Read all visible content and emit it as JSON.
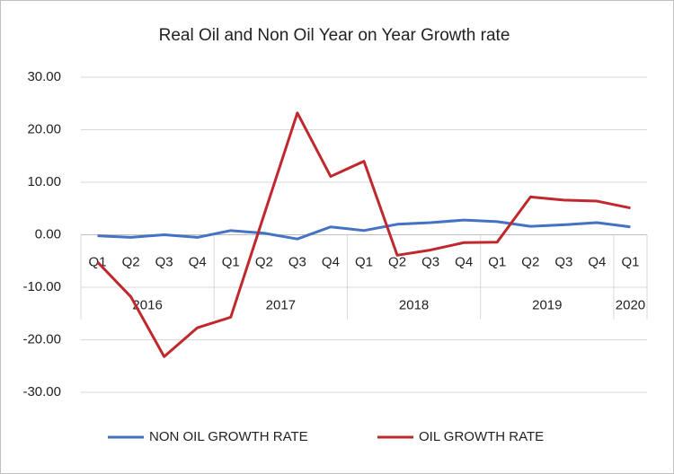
{
  "chart_data": {
    "type": "line",
    "title": "Real Oil and Non Oil Year on Year Growth rate",
    "categories": [
      "Q1",
      "Q2",
      "Q3",
      "Q4",
      "Q1",
      "Q2",
      "Q3",
      "Q4",
      "Q1",
      "Q2",
      "Q3",
      "Q4",
      "Q1",
      "Q2",
      "Q3",
      "Q4",
      "Q1"
    ],
    "groups": [
      {
        "name": "2016",
        "count": 4
      },
      {
        "name": "2017",
        "count": 4
      },
      {
        "name": "2018",
        "count": 4
      },
      {
        "name": "2019",
        "count": 4
      },
      {
        "name": "2020",
        "count": 1
      }
    ],
    "series": [
      {
        "name": "NON OIL GROWTH RATE",
        "color": "#4472c4",
        "values": [
          -0.2,
          -0.5,
          0.0,
          -0.5,
          0.8,
          0.3,
          -0.8,
          1.5,
          0.8,
          2.0,
          2.3,
          2.8,
          2.5,
          1.6,
          1.9,
          2.3,
          1.5
        ]
      },
      {
        "name": "OIL GROWTH RATE",
        "color": "#c0282d",
        "values": [
          -5.2,
          -11.8,
          -23.2,
          -17.7,
          -15.7,
          3.8,
          23.2,
          11.1,
          14.0,
          -3.9,
          -2.9,
          -1.5,
          -1.4,
          7.2,
          6.6,
          6.4,
          5.1
        ]
      }
    ],
    "ylim": [
      -30,
      30
    ],
    "yticks": [
      {
        "value": -30,
        "label": "-30.00"
      },
      {
        "value": -20,
        "label": "-20.00"
      },
      {
        "value": -10,
        "label": "-10.00"
      },
      {
        "value": 0,
        "label": "0.00"
      },
      {
        "value": 10,
        "label": "10.00"
      },
      {
        "value": 20,
        "label": "20.00"
      },
      {
        "value": 30,
        "label": "30.00"
      }
    ],
    "grid": true,
    "legend": "bottom"
  }
}
